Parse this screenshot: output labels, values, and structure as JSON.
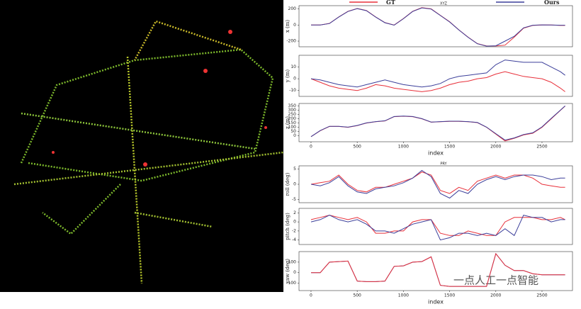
{
  "watermark": "一点人工一点智能",
  "chart_data": [
    {
      "type": "line",
      "title": "XYZ",
      "ylabel": "x (m)",
      "x": [
        0,
        100,
        200,
        300,
        400,
        500,
        600,
        700,
        800,
        900,
        1000,
        1100,
        1200,
        1300,
        1400,
        1500,
        1600,
        1700,
        1800,
        1900,
        2000,
        2100,
        2200,
        2300,
        2400,
        2500,
        2600,
        2700,
        2750
      ],
      "series": [
        {
          "name": "GT",
          "color": "#e8303a",
          "values": [
            0,
            0,
            20,
            100,
            170,
            205,
            180,
            100,
            30,
            0,
            80,
            170,
            215,
            200,
            120,
            40,
            -60,
            -150,
            -230,
            -260,
            -260,
            -250,
            -150,
            -40,
            -5,
            0,
            0,
            -5,
            -5
          ]
        },
        {
          "name": "Ours",
          "color": "#3c3f9a",
          "values": [
            0,
            0,
            18,
            98,
            168,
            203,
            178,
            98,
            28,
            -2,
            78,
            168,
            213,
            198,
            118,
            38,
            -62,
            -152,
            -232,
            -262,
            -258,
            -200,
            -140,
            -35,
            -3,
            2,
            0,
            -3,
            -3
          ]
        }
      ],
      "xlim": [
        -130,
        2830
      ],
      "ylim": [
        -270,
        240
      ],
      "yticks": [
        -200,
        0,
        200
      ]
    },
    {
      "type": "line",
      "ylabel": "y (m)",
      "x": [
        0,
        100,
        200,
        300,
        400,
        500,
        600,
        700,
        800,
        900,
        1000,
        1100,
        1200,
        1300,
        1400,
        1500,
        1600,
        1700,
        1800,
        1900,
        2000,
        2100,
        2200,
        2300,
        2400,
        2500,
        2600,
        2700,
        2750
      ],
      "series": [
        {
          "name": "GT",
          "color": "#e8303a",
          "values": [
            0,
            -3,
            -6,
            -8,
            -9,
            -10,
            -8,
            -5,
            -6,
            -8,
            -9,
            -10,
            -11,
            -10,
            -8,
            -5,
            -3,
            -2,
            0,
            1,
            4,
            6,
            4,
            2,
            1,
            0,
            -3,
            -8,
            -11
          ]
        },
        {
          "name": "Ours",
          "color": "#3c3f9a",
          "values": [
            0,
            -1,
            -3,
            -5,
            -6,
            -7,
            -5,
            -3,
            -1,
            -3,
            -5,
            -6,
            -7,
            -6,
            -4,
            0,
            2,
            3,
            4,
            5,
            12,
            16,
            15,
            14,
            14,
            14,
            10,
            6,
            3
          ]
        }
      ],
      "xlim": [
        -130,
        2830
      ],
      "ylim": [
        -15,
        20
      ],
      "yticks": [
        -10,
        0,
        10
      ]
    },
    {
      "type": "line",
      "ylabel": "z (m)",
      "xlabel": "index",
      "x": [
        0,
        100,
        200,
        300,
        400,
        500,
        600,
        700,
        800,
        900,
        1000,
        1100,
        1200,
        1300,
        1400,
        1500,
        1600,
        1700,
        1800,
        1900,
        2000,
        2100,
        2200,
        2300,
        2400,
        2500,
        2600,
        2700,
        2750
      ],
      "series": [
        {
          "name": "GT",
          "color": "#e8303a",
          "values": [
            -10,
            60,
            110,
            110,
            100,
            120,
            150,
            165,
            175,
            225,
            230,
            225,
            200,
            160,
            165,
            170,
            170,
            165,
            155,
            100,
            20,
            -60,
            -30,
            10,
            30,
            100,
            200,
            300,
            350
          ]
        },
        {
          "name": "Ours",
          "color": "#3c3f9a",
          "values": [
            -10,
            62,
            112,
            112,
            102,
            122,
            152,
            167,
            177,
            227,
            232,
            227,
            202,
            162,
            167,
            172,
            172,
            167,
            157,
            102,
            25,
            -50,
            -25,
            15,
            35,
            105,
            205,
            302,
            352
          ]
        }
      ],
      "xlim": [
        -130,
        2830
      ],
      "ylim": [
        -70,
        380
      ],
      "yticks": [
        0,
        50,
        100,
        150,
        200,
        250,
        300,
        350
      ],
      "xticks": [
        0,
        500,
        1000,
        1500,
        2000,
        2500
      ]
    },
    {
      "type": "line",
      "title": "PRY",
      "ylabel": "roll (deg)",
      "x": [
        0,
        100,
        200,
        300,
        400,
        500,
        600,
        700,
        800,
        900,
        1000,
        1100,
        1200,
        1300,
        1400,
        1500,
        1600,
        1700,
        1800,
        1900,
        2000,
        2100,
        2200,
        2300,
        2400,
        2500,
        2600,
        2700,
        2750
      ],
      "series": [
        {
          "name": "GT",
          "color": "#e8303a",
          "values": [
            0,
            0.5,
            1,
            3,
            0,
            -2,
            -2.5,
            -1,
            -1,
            0,
            1,
            2,
            4,
            3,
            -2,
            -3,
            -1,
            -2,
            1,
            2,
            3,
            2,
            3,
            3,
            2,
            0,
            -0.5,
            -1,
            -1
          ]
        },
        {
          "name": "Ours",
          "color": "#3c3f9a",
          "values": [
            0,
            -0.5,
            0.5,
            2.5,
            -0.5,
            -2.5,
            -3,
            -1.5,
            -1,
            -0.5,
            0.5,
            2,
            4.5,
            2.5,
            -3,
            -4.5,
            -2,
            -3,
            0,
            1.5,
            2.5,
            1.5,
            2.5,
            3,
            3,
            2.5,
            1.5,
            2,
            2
          ]
        }
      ],
      "xlim": [
        -130,
        2830
      ],
      "ylim": [
        -6,
        6
      ],
      "yticks": [
        -5,
        0,
        5
      ]
    },
    {
      "type": "line",
      "ylabel": "pitch (deg)",
      "x": [
        0,
        100,
        200,
        300,
        400,
        500,
        600,
        700,
        800,
        900,
        1000,
        1100,
        1200,
        1300,
        1400,
        1500,
        1600,
        1700,
        1800,
        1900,
        2000,
        2100,
        2200,
        2300,
        2400,
        2500,
        2600,
        2700,
        2750
      ],
      "series": [
        {
          "name": "GT",
          "color": "#e8303a",
          "values": [
            0.5,
            1,
            1.5,
            1,
            0.5,
            1,
            0,
            -2.5,
            -2.5,
            -2,
            -2,
            0,
            0.5,
            0.5,
            -2.5,
            -3,
            -3,
            -2,
            -2.5,
            -3,
            -3,
            0,
            1,
            1,
            1,
            0.5,
            0.5,
            1,
            0.5
          ]
        },
        {
          "name": "Ours",
          "color": "#3c3f9a",
          "values": [
            0,
            0.5,
            1.5,
            0.5,
            0,
            0.5,
            -0.5,
            -2,
            -2,
            -2.5,
            -1.5,
            -0.5,
            0,
            0.5,
            -4,
            -3.5,
            -2.5,
            -2.5,
            -3,
            -2.5,
            -3,
            -1.5,
            -3,
            1.5,
            1,
            1,
            0,
            0.5,
            0.5
          ]
        }
      ],
      "xlim": [
        -130,
        2830
      ],
      "ylim": [
        -5,
        3
      ],
      "yticks": [
        -4,
        -2,
        0,
        2
      ]
    },
    {
      "type": "line",
      "ylabel": "yaw (deg)",
      "xlabel": "index",
      "x": [
        0,
        100,
        200,
        300,
        400,
        500,
        600,
        700,
        800,
        900,
        1000,
        1100,
        1200,
        1300,
        1400,
        1500,
        1600,
        1700,
        1800,
        1900,
        2000,
        2100,
        2200,
        2300,
        2400,
        2500,
        2600,
        2700,
        2750
      ],
      "series": [
        {
          "name": "GT",
          "color": "#3c3f9a",
          "values": [
            0,
            0,
            100,
            105,
            110,
            -80,
            -85,
            -85,
            -80,
            60,
            65,
            100,
            105,
            150,
            -120,
            -130,
            -130,
            -130,
            -130,
            -130,
            180,
            70,
            20,
            20,
            -10,
            -20,
            -20,
            -20,
            -20
          ]
        },
        {
          "name": "Ours",
          "color": "#e8303a",
          "values": [
            0,
            0,
            100,
            105,
            110,
            -80,
            -85,
            -85,
            -80,
            60,
            65,
            100,
            105,
            150,
            -120,
            -130,
            -130,
            -130,
            -130,
            -130,
            180,
            70,
            20,
            20,
            -10,
            -20,
            -20,
            -20,
            -20
          ]
        }
      ],
      "xlim": [
        -130,
        2830
      ],
      "ylim": [
        -170,
        200
      ],
      "yticks": [
        -100,
        0,
        100
      ],
      "xticks": [
        0,
        500,
        1000,
        1500,
        2000,
        2500
      ]
    }
  ]
}
